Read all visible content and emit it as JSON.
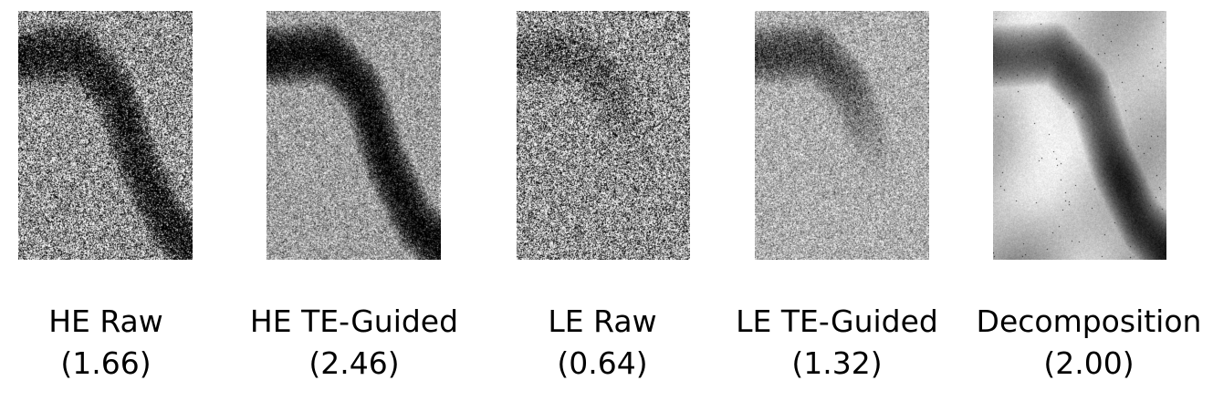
{
  "figure": {
    "panels": [
      {
        "id": "he-raw",
        "label": "HE Raw",
        "value": "(1.66)",
        "style": "he-raw"
      },
      {
        "id": "he-te-guided",
        "label": "HE TE-Guided",
        "value": "(2.46)",
        "style": "he-guided"
      },
      {
        "id": "le-raw",
        "label": "LE Raw",
        "value": "(0.64)",
        "style": "le-raw"
      },
      {
        "id": "le-te-guided",
        "label": "LE TE-Guided",
        "value": "(1.32)",
        "style": "le-guided"
      },
      {
        "id": "decomposition",
        "label": "Decomposition",
        "value": "(2.00)",
        "style": "decomp"
      }
    ]
  }
}
